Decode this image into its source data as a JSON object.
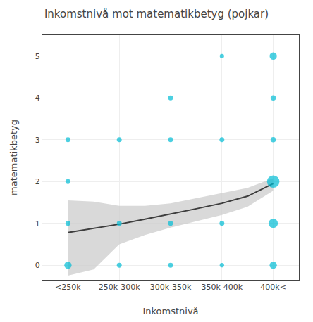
{
  "chart_data": {
    "type": "scatter",
    "title": "Inkomstnivå mot matematikbetyg (pojkar)",
    "xlabel": "Inkomstnivå",
    "ylabel": "matematikbetyg",
    "xlim": [
      -0.5,
      4.5
    ],
    "xticks": [
      {
        "value": 0,
        "label": "<250k"
      },
      {
        "value": 1,
        "label": "250k-300k"
      },
      {
        "value": 2,
        "label": "300k-350k"
      },
      {
        "value": 3,
        "label": "350k-400k"
      },
      {
        "value": 4,
        "label": "400k<"
      }
    ],
    "ylim": [
      -0.35,
      5.5
    ],
    "yticks": [
      0,
      1,
      2,
      3,
      4,
      5
    ],
    "grid": true,
    "series": [
      {
        "type": "band",
        "color": "#CCCCCC",
        "x": [
          0,
          0.5,
          1,
          1.5,
          2,
          2.5,
          3,
          3.5,
          4
        ],
        "lower": [
          -0.25,
          -0.1,
          0.5,
          0.72,
          0.9,
          1.05,
          1.2,
          1.4,
          1.78
        ],
        "upper": [
          1.55,
          1.52,
          1.42,
          1.42,
          1.48,
          1.6,
          1.72,
          1.85,
          2.08
        ]
      },
      {
        "type": "line",
        "color": "#3d3d3d",
        "x": [
          0,
          0.5,
          1,
          1.5,
          2,
          2.5,
          3,
          3.5,
          4
        ],
        "values": [
          0.78,
          0.88,
          0.98,
          1.1,
          1.22,
          1.35,
          1.48,
          1.65,
          1.95
        ]
      },
      {
        "type": "scatter",
        "color": "#00BCD4",
        "x": [
          0,
          0,
          0,
          0,
          1,
          1,
          1,
          2,
          2,
          2,
          2,
          3,
          3,
          3,
          3,
          4,
          4,
          4,
          4,
          4,
          4
        ],
        "values": [
          0,
          1,
          2,
          3,
          0,
          1,
          3,
          0,
          1,
          3,
          4,
          0,
          1,
          3,
          5,
          0,
          1,
          2,
          3,
          4,
          5
        ],
        "sizes": [
          55,
          25,
          25,
          25,
          25,
          25,
          25,
          25,
          25,
          25,
          25,
          20,
          25,
          25,
          20,
          55,
          90,
          160,
          30,
          30,
          55
        ]
      }
    ]
  }
}
